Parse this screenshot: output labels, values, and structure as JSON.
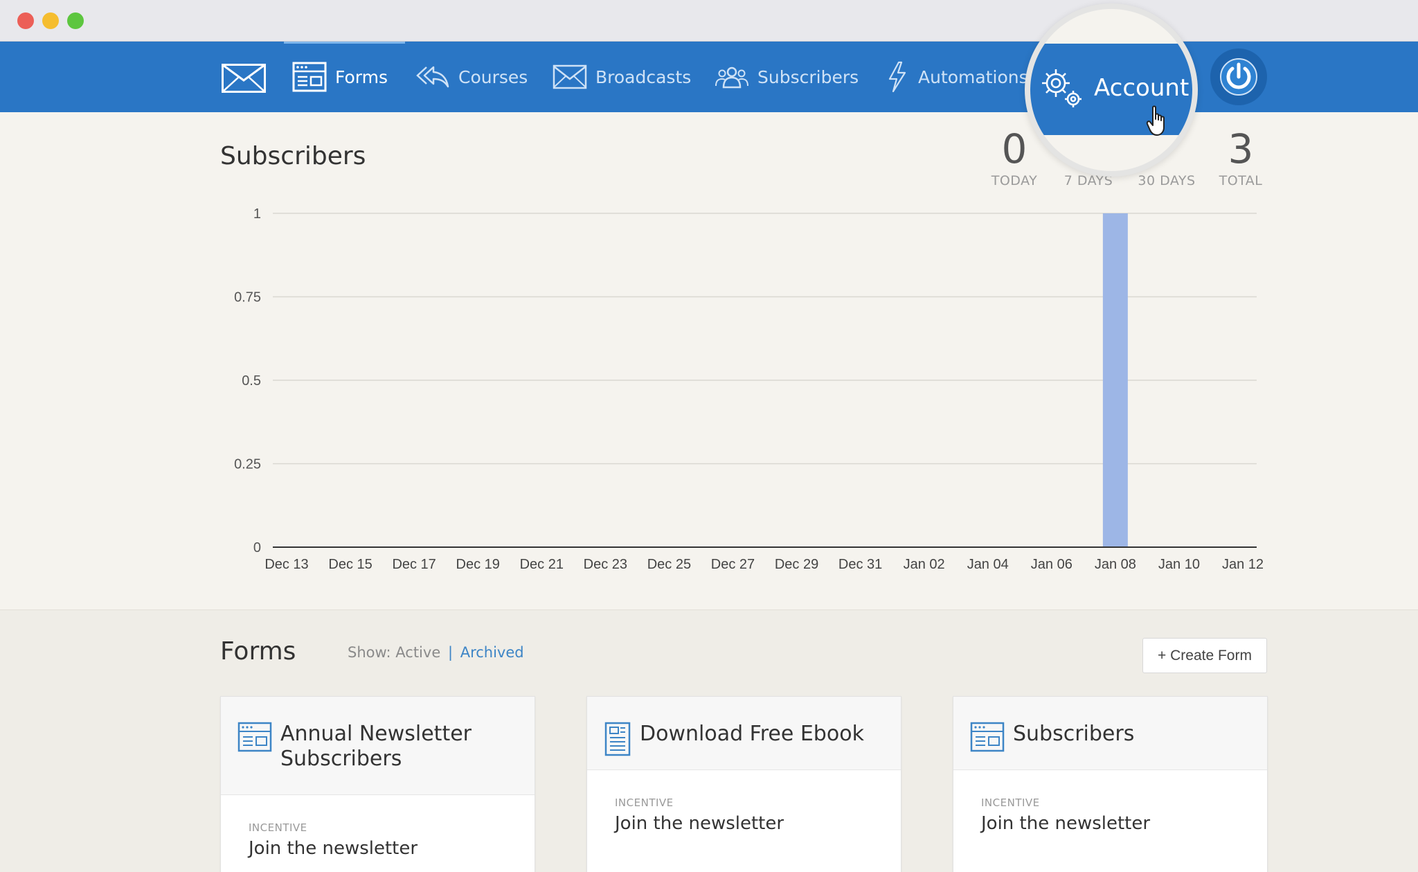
{
  "window": {
    "controls": [
      "close",
      "minimize",
      "maximize"
    ]
  },
  "nav": {
    "logo_icon": "envelope-logo-icon",
    "items": [
      {
        "label": "Forms",
        "icon": "form-icon",
        "active": true
      },
      {
        "label": "Courses",
        "icon": "reply-all-icon"
      },
      {
        "label": "Broadcasts",
        "icon": "envelope-icon"
      },
      {
        "label": "Subscribers",
        "icon": "users-icon"
      },
      {
        "label": "Automations",
        "icon": "lightning-icon"
      }
    ],
    "account": {
      "label": "Account",
      "icon": "gears-icon"
    },
    "power_icon": "power-icon",
    "accent": "#2a76c5"
  },
  "subscribers": {
    "title": "Subscribers",
    "stats": [
      {
        "value": "0",
        "label": "TODAY"
      },
      {
        "value": "",
        "label": "7 DAYS"
      },
      {
        "value": "",
        "label": "30 DAYS"
      },
      {
        "value": "3",
        "label": "TOTAL"
      }
    ]
  },
  "chart_data": {
    "type": "bar",
    "title": "",
    "xlabel": "",
    "ylabel": "",
    "ylim": [
      0,
      1
    ],
    "yticks": [
      "0",
      "0.25",
      "0.5",
      "0.75",
      "1"
    ],
    "xticks": [
      "Dec 13",
      "Dec 15",
      "Dec 17",
      "Dec 19",
      "Dec 21",
      "Dec 23",
      "Dec 25",
      "Dec 27",
      "Dec 29",
      "Dec 31",
      "Jan 02",
      "Jan 04",
      "Jan 06",
      "Jan 08",
      "Jan 10",
      "Jan 12"
    ],
    "x": [
      "Dec 13",
      "Dec 14",
      "Dec 15",
      "Dec 16",
      "Dec 17",
      "Dec 18",
      "Dec 19",
      "Dec 20",
      "Dec 21",
      "Dec 22",
      "Dec 23",
      "Dec 24",
      "Dec 25",
      "Dec 26",
      "Dec 27",
      "Dec 28",
      "Dec 29",
      "Dec 30",
      "Dec 31",
      "Jan 01",
      "Jan 02",
      "Jan 03",
      "Jan 04",
      "Jan 05",
      "Jan 06",
      "Jan 07",
      "Jan 08",
      "Jan 09",
      "Jan 10",
      "Jan 11",
      "Jan 12"
    ],
    "values": [
      0,
      0,
      0,
      0,
      0,
      0,
      0,
      0,
      0,
      0,
      0,
      0,
      0,
      0,
      0,
      0,
      0,
      0,
      0,
      0,
      0,
      0,
      0,
      0,
      0,
      0,
      1,
      0,
      0,
      0,
      0
    ],
    "bar_color": "#9db6e6",
    "grid": true
  },
  "forms": {
    "title": "Forms",
    "filter": {
      "prefix": "Show:",
      "active": "Active",
      "separator": "|",
      "archived": "Archived"
    },
    "create_button": "+ Create Form",
    "cards": [
      {
        "title_line1": "Annual Newsletter",
        "title_line2": "Subscribers",
        "icon": "form-icon",
        "incentive_label": "INCENTIVE",
        "incentive": "Join the newsletter"
      },
      {
        "title_line1": "Download Free Ebook",
        "title_line2": "",
        "icon": "document-icon",
        "incentive_label": "INCENTIVE",
        "incentive": "Join the newsletter"
      },
      {
        "title_line1": "Subscribers",
        "title_line2": "",
        "icon": "form-icon",
        "incentive_label": "INCENTIVE",
        "incentive": "Join the newsletter"
      }
    ]
  }
}
